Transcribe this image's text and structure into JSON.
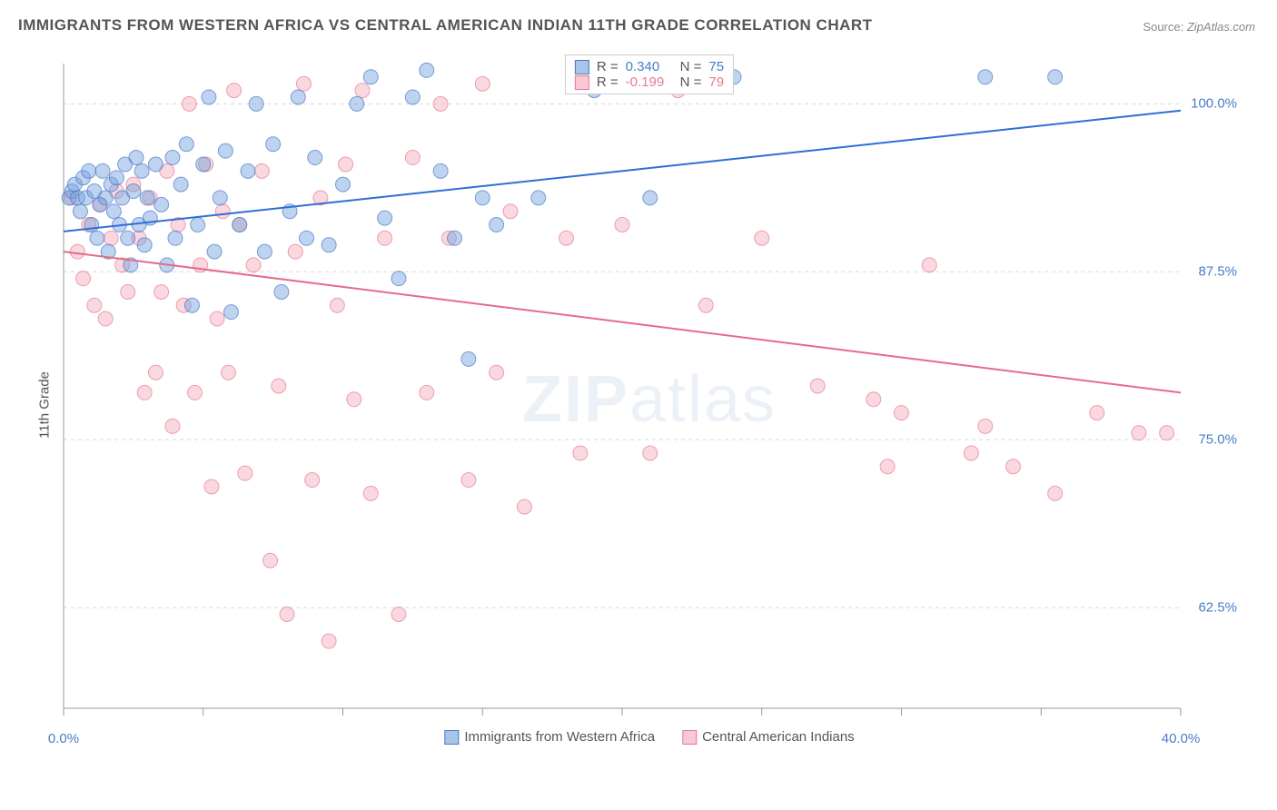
{
  "title": "IMMIGRANTS FROM WESTERN AFRICA VS CENTRAL AMERICAN INDIAN 11TH GRADE CORRELATION CHART",
  "source_label": "Source:",
  "source_name": "ZipAtlas.com",
  "ylabel": "11th Grade",
  "watermark_bold": "ZIP",
  "watermark_light": "atlas",
  "chart": {
    "type": "scatter",
    "xlim": [
      0,
      40
    ],
    "ylim": [
      55,
      103
    ],
    "ytick_values": [
      62.5,
      75.0,
      87.5,
      100.0
    ],
    "ytick_labels": [
      "62.5%",
      "75.0%",
      "87.5%",
      "100.0%"
    ],
    "xtick_values": [
      0,
      5,
      10,
      15,
      20,
      25,
      30,
      35,
      40
    ],
    "xtick_bottom_labels": {
      "0": "0.0%",
      "40": "40.0%"
    },
    "grid_color": "#d8d8d8",
    "axis_color": "#999999",
    "background": "#ffffff",
    "marker_radius": 8,
    "marker_opacity": 0.45,
    "line_width": 2
  },
  "series": [
    {
      "name": "Immigrants from Western Africa",
      "fill": "#6f9edb",
      "stroke": "#4a7bc8",
      "line_color": "#2e6fd4",
      "R": "0.340",
      "N": "75",
      "trend": {
        "x1": 0,
        "y1": 90.5,
        "x2": 40,
        "y2": 99.5
      },
      "points": [
        [
          0.2,
          93
        ],
        [
          0.3,
          93.5
        ],
        [
          0.4,
          94
        ],
        [
          0.5,
          93
        ],
        [
          0.6,
          92
        ],
        [
          0.7,
          94.5
        ],
        [
          0.8,
          93
        ],
        [
          0.9,
          95
        ],
        [
          1.0,
          91
        ],
        [
          1.1,
          93.5
        ],
        [
          1.2,
          90
        ],
        [
          1.3,
          92.5
        ],
        [
          1.4,
          95
        ],
        [
          1.5,
          93
        ],
        [
          1.6,
          89
        ],
        [
          1.7,
          94
        ],
        [
          1.8,
          92
        ],
        [
          1.9,
          94.5
        ],
        [
          2.0,
          91
        ],
        [
          2.1,
          93
        ],
        [
          2.2,
          95.5
        ],
        [
          2.3,
          90
        ],
        [
          2.4,
          88
        ],
        [
          2.5,
          93.5
        ],
        [
          2.6,
          96
        ],
        [
          2.7,
          91
        ],
        [
          2.8,
          95
        ],
        [
          2.9,
          89.5
        ],
        [
          3.0,
          93
        ],
        [
          3.1,
          91.5
        ],
        [
          3.3,
          95.5
        ],
        [
          3.5,
          92.5
        ],
        [
          3.7,
          88
        ],
        [
          3.9,
          96
        ],
        [
          4.0,
          90
        ],
        [
          4.2,
          94
        ],
        [
          4.4,
          97
        ],
        [
          4.6,
          85
        ],
        [
          4.8,
          91
        ],
        [
          5.0,
          95.5
        ],
        [
          5.2,
          100.5
        ],
        [
          5.4,
          89
        ],
        [
          5.6,
          93
        ],
        [
          5.8,
          96.5
        ],
        [
          6.0,
          84.5
        ],
        [
          6.3,
          91
        ],
        [
          6.6,
          95
        ],
        [
          6.9,
          100
        ],
        [
          7.2,
          89
        ],
        [
          7.5,
          97
        ],
        [
          7.8,
          86
        ],
        [
          8.1,
          92
        ],
        [
          8.4,
          100.5
        ],
        [
          8.7,
          90
        ],
        [
          9.0,
          96
        ],
        [
          9.5,
          89.5
        ],
        [
          10.0,
          94
        ],
        [
          10.5,
          100
        ],
        [
          11.0,
          102
        ],
        [
          11.5,
          91.5
        ],
        [
          12.0,
          87
        ],
        [
          12.5,
          100.5
        ],
        [
          13.0,
          102.5
        ],
        [
          13.5,
          95
        ],
        [
          14.0,
          90
        ],
        [
          14.5,
          81
        ],
        [
          15.0,
          93
        ],
        [
          15.5,
          91
        ],
        [
          17.0,
          93
        ],
        [
          19.0,
          101
        ],
        [
          21.0,
          93
        ],
        [
          24.0,
          102
        ],
        [
          33.0,
          102
        ],
        [
          35.5,
          102
        ]
      ]
    },
    {
      "name": "Central American Indians",
      "fill": "#f4a8b8",
      "stroke": "#e87a94",
      "line_color": "#e56b8a",
      "R": "-0.199",
      "N": "79",
      "trend": {
        "x1": 0,
        "y1": 89,
        "x2": 40,
        "y2": 78.5
      },
      "points": [
        [
          0.3,
          93
        ],
        [
          0.5,
          89
        ],
        [
          0.7,
          87
        ],
        [
          0.9,
          91
        ],
        [
          1.1,
          85
        ],
        [
          1.3,
          92.5
        ],
        [
          1.5,
          84
        ],
        [
          1.7,
          90
        ],
        [
          1.9,
          93.5
        ],
        [
          2.1,
          88
        ],
        [
          2.3,
          86
        ],
        [
          2.5,
          94
        ],
        [
          2.7,
          90
        ],
        [
          2.9,
          78.5
        ],
        [
          3.1,
          93
        ],
        [
          3.3,
          80
        ],
        [
          3.5,
          86
        ],
        [
          3.7,
          95
        ],
        [
          3.9,
          76
        ],
        [
          4.1,
          91
        ],
        [
          4.3,
          85
        ],
        [
          4.5,
          100
        ],
        [
          4.7,
          78.5
        ],
        [
          4.9,
          88
        ],
        [
          5.1,
          95.5
        ],
        [
          5.3,
          71.5
        ],
        [
          5.5,
          84
        ],
        [
          5.7,
          92
        ],
        [
          5.9,
          80
        ],
        [
          6.1,
          101
        ],
        [
          6.3,
          91
        ],
        [
          6.5,
          72.5
        ],
        [
          6.8,
          88
        ],
        [
          7.1,
          95
        ],
        [
          7.4,
          66
        ],
        [
          7.7,
          79
        ],
        [
          8.0,
          62
        ],
        [
          8.3,
          89
        ],
        [
          8.6,
          101.5
        ],
        [
          8.9,
          72
        ],
        [
          9.2,
          93
        ],
        [
          9.5,
          60
        ],
        [
          9.8,
          85
        ],
        [
          10.1,
          95.5
        ],
        [
          10.4,
          78
        ],
        [
          10.7,
          101
        ],
        [
          11.0,
          71
        ],
        [
          11.5,
          90
        ],
        [
          12.0,
          62
        ],
        [
          12.5,
          96
        ],
        [
          13.0,
          78.5
        ],
        [
          13.5,
          100
        ],
        [
          13.8,
          90
        ],
        [
          14.5,
          72
        ],
        [
          15.0,
          101.5
        ],
        [
          15.5,
          80
        ],
        [
          16.0,
          92
        ],
        [
          16.5,
          70
        ],
        [
          18.0,
          90
        ],
        [
          18.5,
          74
        ],
        [
          20.0,
          91
        ],
        [
          21.0,
          74
        ],
        [
          22.0,
          101
        ],
        [
          23.0,
          85
        ],
        [
          23.5,
          102
        ],
        [
          25.0,
          90
        ],
        [
          27.0,
          79
        ],
        [
          29.0,
          78
        ],
        [
          29.5,
          73
        ],
        [
          30.0,
          77
        ],
        [
          31.0,
          88
        ],
        [
          32.5,
          74
        ],
        [
          33.0,
          76
        ],
        [
          34.0,
          73
        ],
        [
          35.5,
          71
        ],
        [
          37.0,
          77
        ],
        [
          38.5,
          75.5
        ],
        [
          39.5,
          75.5
        ]
      ]
    }
  ],
  "legend_top": {
    "R_label": "R =",
    "N_label": "N ="
  },
  "legend_bottom_labels": [
    "Immigrants from Western Africa",
    "Central American Indians"
  ]
}
